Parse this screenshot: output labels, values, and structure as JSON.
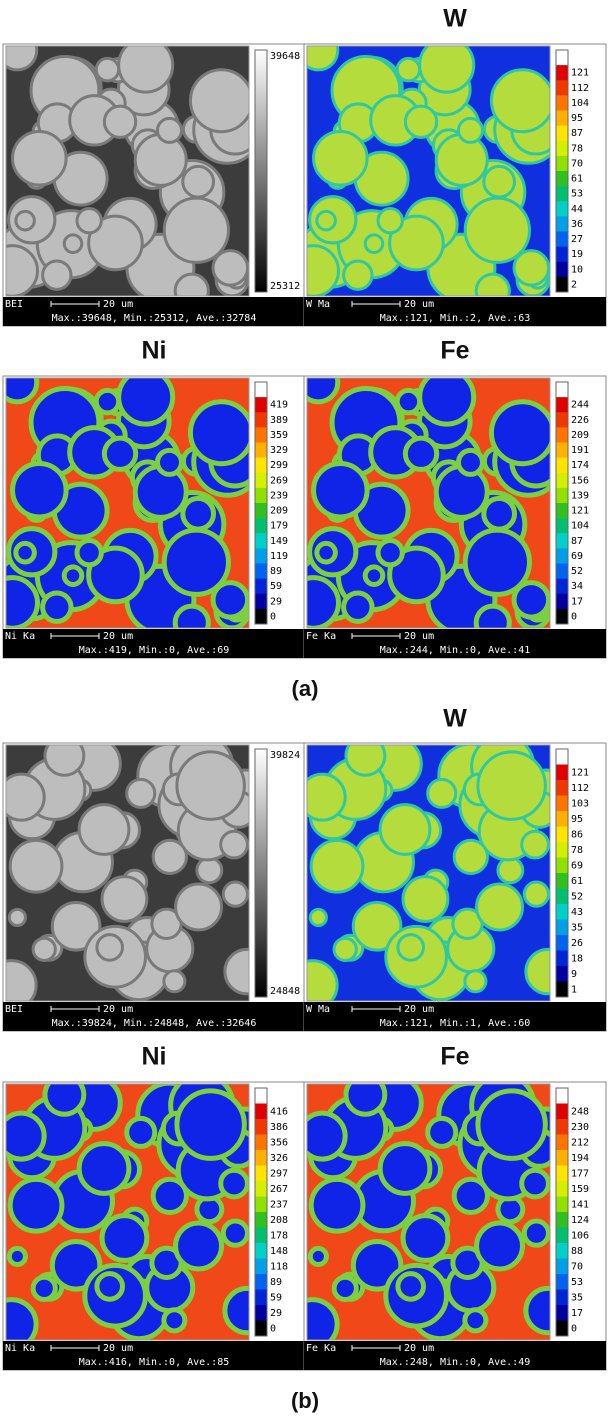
{
  "panels": [
    {
      "label": "(a)",
      "maps": [
        {
          "signal": "BEI",
          "scale": "20 um",
          "stats": "Max.:39648, Min.:25312, Ave.:32784",
          "colorbar": [
            39648,
            25312
          ]
        },
        {
          "title": "W",
          "signal": "W Ma",
          "scale": "20 um",
          "stats": "Max.:121, Min.:2, Ave.:63",
          "colorbar": [
            121,
            112,
            104,
            95,
            87,
            78,
            70,
            61,
            53,
            44,
            36,
            27,
            19,
            10,
            2
          ]
        },
        {
          "title": "Ni",
          "signal": "Ni Ka",
          "scale": "20 um",
          "stats": "Max.:419, Min.:0, Ave.:69",
          "colorbar": [
            419,
            389,
            359,
            329,
            299,
            269,
            239,
            209,
            179,
            149,
            119,
            89,
            59,
            29,
            0
          ]
        },
        {
          "title": "Fe",
          "signal": "Fe Ka",
          "scale": "20 um",
          "stats": "Max.:244, Min.:0, Ave.:41",
          "colorbar": [
            244,
            226,
            209,
            191,
            174,
            156,
            139,
            121,
            104,
            87,
            69,
            52,
            34,
            17,
            0
          ]
        }
      ]
    },
    {
      "label": "(b)",
      "maps": [
        {
          "signal": "BEI",
          "scale": "20 um",
          "stats": "Max.:39824, Min.:24848, Ave.:32646",
          "colorbar": [
            39824,
            24848
          ]
        },
        {
          "title": "W",
          "signal": "W Ma",
          "scale": "20 um",
          "stats": "Max.:121, Min.:1, Ave.:60",
          "colorbar": [
            121,
            112,
            103,
            95,
            86,
            78,
            69,
            61,
            52,
            43,
            35,
            26,
            18,
            9,
            1
          ]
        },
        {
          "title": "Ni",
          "signal": "Ni Ka",
          "scale": "20 um",
          "stats": "Max.:416, Min.:0, Ave.:85",
          "colorbar": [
            416,
            386,
            356,
            326,
            297,
            267,
            237,
            208,
            178,
            148,
            118,
            89,
            59,
            29,
            0
          ]
        },
        {
          "title": "Fe",
          "signal": "Fe Ka",
          "scale": "20 um",
          "stats": "Max.:248, Min.:0, Ave.:49",
          "colorbar": [
            248,
            230,
            212,
            194,
            177,
            159,
            141,
            124,
            106,
            88,
            70,
            53,
            35,
            17,
            0
          ]
        }
      ]
    }
  ]
}
